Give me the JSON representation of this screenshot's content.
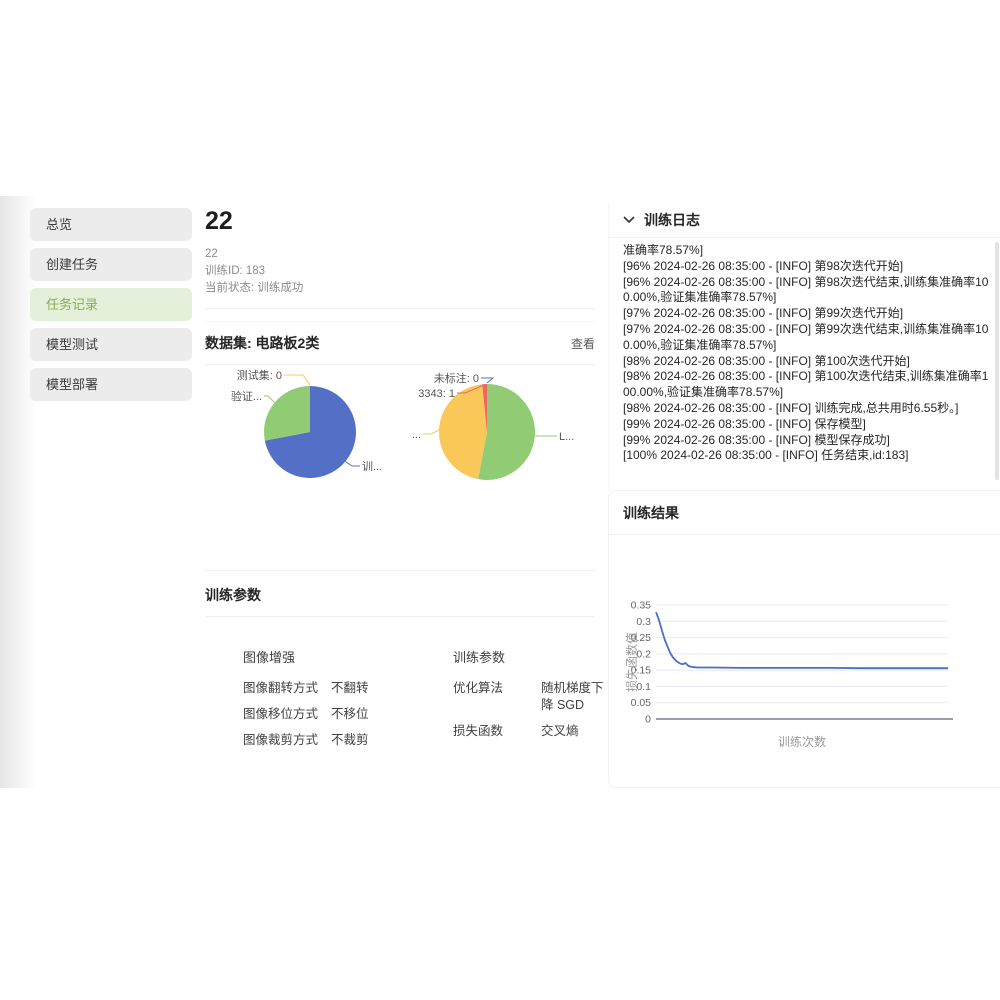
{
  "sidebar": {
    "items": [
      {
        "label": "总览",
        "active": false
      },
      {
        "label": "创建任务",
        "active": false
      },
      {
        "label": "任务记录",
        "active": true
      },
      {
        "label": "模型测试",
        "active": false
      },
      {
        "label": "模型部署",
        "active": false
      }
    ]
  },
  "main": {
    "title": "22",
    "meta": {
      "name": "22",
      "train_id": "训练ID: 183",
      "status": "当前状态: 训练成功"
    },
    "dataset_card": {
      "title": "数据集: 电路板2类",
      "view_label": "查看"
    },
    "params_card": {
      "title": "训练参数",
      "groups": [
        {
          "title": "图像增强",
          "rows": [
            {
              "label": "图像翻转方式",
              "value": "不翻转"
            },
            {
              "label": "图像移位方式",
              "value": "不移位"
            },
            {
              "label": "图像裁剪方式",
              "value": "不裁剪"
            }
          ]
        },
        {
          "title": "训练参数",
          "rows": [
            {
              "label": "优化算法",
              "value": "随机梯度下降 SGD"
            },
            {
              "label": "损失函数",
              "value": "交叉熵"
            }
          ]
        }
      ]
    }
  },
  "logs": {
    "title": "训练日志",
    "chevron_icon": "chevron-down",
    "lines": [
      "准确率78.57%]",
      "[96% 2024-02-26 08:35:00 - [INFO] 第98次迭代开始]",
      "[96% 2024-02-26 08:35:00 - [INFO] 第98次迭代结束,训练集准确率100.00%,验证集准确率78.57%]",
      "[97% 2024-02-26 08:35:00 - [INFO] 第99次迭代开始]",
      "[97% 2024-02-26 08:35:00 - [INFO] 第99次迭代结束,训练集准确率100.00%,验证集准确率78.57%]",
      "[98% 2024-02-26 08:35:00 - [INFO] 第100次迭代开始]",
      "[98% 2024-02-26 08:35:00 - [INFO] 第100次迭代结束,训练集准确率100.00%,验证集准确率78.57%]",
      "[98% 2024-02-26 08:35:00 - [INFO] 训练完成,总共用时6.55秒。]",
      "[99% 2024-02-26 08:35:00 - [INFO] 保存模型]",
      "[99% 2024-02-26 08:35:00 - [INFO] 模型保存成功]",
      "[100% 2024-02-26 08:35:00 - [INFO] 任务结束,id:183]"
    ]
  },
  "results": {
    "title": "训练结果"
  },
  "colors": {
    "accent_green_bg": "#e5f0da",
    "accent_green_text": "#86ad4e",
    "pie_blue": "#5470c6",
    "pie_green": "#91cc75",
    "pie_yellow": "#fac858",
    "pie_red": "#ee6666",
    "line_blue": "#4a6ec8"
  },
  "chart_data": [
    {
      "type": "pie",
      "name": "dataset-split-pie",
      "slices": [
        {
          "label": "训练集",
          "display": "训...",
          "value": 72,
          "color": "#5470c6"
        },
        {
          "label": "验证集",
          "display": "验证...",
          "value": 28,
          "color": "#91cc75"
        },
        {
          "label": "测试集",
          "display": "测试集: 0",
          "value": 0,
          "color": "#fac858"
        }
      ]
    },
    {
      "type": "pie",
      "name": "dataset-labels-pie",
      "slices": [
        {
          "label": "L...",
          "display": "L...",
          "value": 53,
          "color": "#91cc75"
        },
        {
          "label": "...",
          "display": "...",
          "value": 45.4,
          "color": "#fac858"
        },
        {
          "label": "3343",
          "display": "3343: 1",
          "value": 1.6,
          "color": "#ee6666"
        },
        {
          "label": "未标注",
          "display": "未标注: 0",
          "value": 0,
          "color": "#5470c6"
        }
      ]
    },
    {
      "type": "line",
      "name": "loss-curve",
      "title": "",
      "xlabel": "训练次数",
      "ylabel": "损失函数值",
      "yticks": [
        0,
        0.05,
        0.1,
        0.15,
        0.2,
        0.25,
        0.3,
        0.35
      ],
      "ylim": [
        0,
        0.35
      ],
      "xlim": [
        1,
        100
      ],
      "grid": true,
      "legend": "none",
      "color": "#4a6ec8",
      "points": [
        [
          1,
          0.328
        ],
        [
          2,
          0.305
        ],
        [
          3,
          0.272
        ],
        [
          4,
          0.243
        ],
        [
          5,
          0.22
        ],
        [
          6,
          0.2
        ],
        [
          7,
          0.186
        ],
        [
          8,
          0.177
        ],
        [
          9,
          0.171
        ],
        [
          10,
          0.168
        ],
        [
          11,
          0.172
        ],
        [
          12,
          0.163
        ],
        [
          13,
          0.16
        ],
        [
          14,
          0.159
        ],
        [
          15,
          0.158
        ],
        [
          20,
          0.158
        ],
        [
          30,
          0.157
        ],
        [
          40,
          0.157
        ],
        [
          50,
          0.157
        ],
        [
          60,
          0.157
        ],
        [
          70,
          0.156
        ],
        [
          80,
          0.156
        ],
        [
          90,
          0.156
        ],
        [
          100,
          0.156
        ]
      ]
    }
  ]
}
